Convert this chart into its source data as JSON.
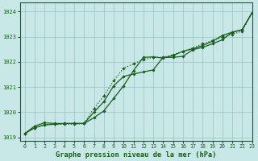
{
  "xlabel": "Graphe pression niveau de la mer (hPa)",
  "xlim": [
    -0.5,
    23
  ],
  "ylim": [
    1018.85,
    1024.35
  ],
  "yticks": [
    1019,
    1020,
    1021,
    1022,
    1023,
    1024
  ],
  "xticks": [
    0,
    1,
    2,
    3,
    4,
    5,
    6,
    7,
    8,
    9,
    10,
    11,
    12,
    13,
    14,
    15,
    16,
    17,
    18,
    19,
    20,
    21,
    22,
    23
  ],
  "bg_color": "#c8e8e8",
  "line_color": "#1a5c1a",
  "grid_color": "#9bbfbf",
  "s1_x": [
    0,
    1,
    2,
    3,
    4,
    5,
    6,
    7,
    8,
    9,
    10,
    11,
    12,
    13,
    14,
    15,
    16,
    17,
    18,
    19,
    20,
    21,
    22,
    23
  ],
  "s1_y": [
    1019.15,
    1019.45,
    1019.58,
    1019.55,
    1019.55,
    1019.55,
    1019.55,
    1019.78,
    1020.05,
    1020.55,
    1021.05,
    1021.65,
    1022.18,
    1022.2,
    1022.15,
    1022.25,
    1022.42,
    1022.52,
    1022.65,
    1022.82,
    1023.05,
    1023.18,
    1023.28,
    1023.95
  ],
  "s2_x": [
    0,
    1,
    2,
    3,
    4,
    5,
    6,
    7,
    8,
    9,
    10,
    11,
    12,
    13,
    14,
    15,
    16,
    17,
    18,
    19,
    20,
    21,
    22,
    23
  ],
  "s2_y": [
    1019.15,
    1019.38,
    1019.5,
    1019.52,
    1019.55,
    1019.55,
    1019.55,
    1020.0,
    1020.42,
    1021.05,
    1021.42,
    1021.52,
    1021.6,
    1021.68,
    1022.18,
    1022.18,
    1022.22,
    1022.48,
    1022.58,
    1022.72,
    1022.88,
    1023.18,
    1023.28,
    1023.95
  ],
  "s3_x": [
    0,
    1,
    2,
    3,
    4,
    5,
    6,
    7,
    8,
    9,
    10,
    11,
    12,
    13,
    14,
    15,
    16,
    17,
    18,
    19,
    20,
    21,
    22,
    23
  ],
  "s3_y": [
    1019.15,
    1019.38,
    1019.5,
    1019.52,
    1019.52,
    1019.52,
    1019.55,
    1020.15,
    1020.65,
    1021.25,
    1021.75,
    1021.92,
    1022.1,
    1022.18,
    1022.18,
    1022.28,
    1022.42,
    1022.55,
    1022.72,
    1022.85,
    1022.98,
    1023.1,
    1023.22,
    1023.95
  ]
}
